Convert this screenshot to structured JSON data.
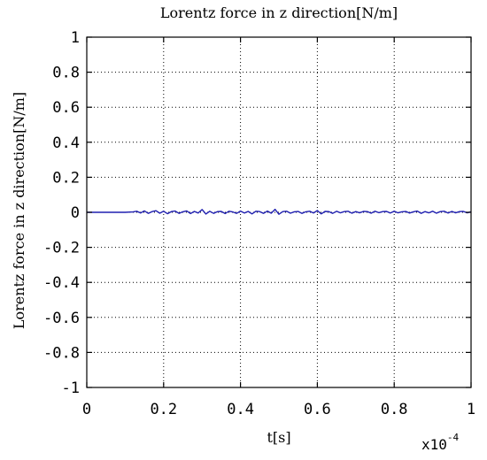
{
  "chart_data": {
    "type": "line",
    "title": "Lorentz force in z direction[N/m]",
    "xlabel": "t[s]",
    "ylabel": "Lorentz force in z direction[N/m]",
    "x_exponent_base": "x10",
    "x_exponent_power": "-4",
    "xlim": [
      0,
      1
    ],
    "ylim": [
      -1,
      1
    ],
    "x_ticks": [
      0,
      0.2,
      0.4,
      0.6,
      0.8,
      1
    ],
    "x_tick_labels": [
      "0",
      "0.2",
      "0.4",
      "0.6",
      "0.8",
      "1"
    ],
    "y_ticks": [
      -1,
      -0.8,
      -0.6,
      -0.4,
      -0.2,
      0,
      0.2,
      0.4,
      0.6,
      0.8,
      1
    ],
    "y_tick_labels": [
      "-1",
      "-0.8",
      "-0.6",
      "-0.4",
      "-0.2",
      "0",
      "0.2",
      "0.4",
      "0.6",
      "0.8",
      "1"
    ],
    "grid": true,
    "series": [
      {
        "color": "#1f1fb0",
        "x": [
          0,
          0.05,
          0.1,
          0.12,
          0.13,
          0.14,
          0.15,
          0.16,
          0.17,
          0.18,
          0.19,
          0.2,
          0.21,
          0.22,
          0.23,
          0.24,
          0.25,
          0.26,
          0.27,
          0.28,
          0.29,
          0.3,
          0.31,
          0.32,
          0.33,
          0.34,
          0.35,
          0.36,
          0.37,
          0.38,
          0.39,
          0.4,
          0.41,
          0.42,
          0.43,
          0.44,
          0.45,
          0.46,
          0.47,
          0.48,
          0.49,
          0.5,
          0.51,
          0.52,
          0.53,
          0.54,
          0.55,
          0.56,
          0.57,
          0.58,
          0.59,
          0.6,
          0.61,
          0.62,
          0.63,
          0.64,
          0.65,
          0.66,
          0.67,
          0.68,
          0.69,
          0.7,
          0.71,
          0.72,
          0.73,
          0.74,
          0.75,
          0.76,
          0.77,
          0.78,
          0.79,
          0.8,
          0.81,
          0.82,
          0.83,
          0.84,
          0.85,
          0.86,
          0.87,
          0.88,
          0.89,
          0.9,
          0.91,
          0.92,
          0.93,
          0.94,
          0.95,
          0.96,
          0.97,
          0.98,
          0.99,
          1
        ],
        "y": [
          0,
          0,
          0,
          0.002,
          0.006,
          -0.004,
          0.008,
          -0.006,
          0.004,
          0.009,
          -0.005,
          0.006,
          -0.008,
          0.004,
          0.007,
          -0.006,
          0.003,
          0.008,
          -0.007,
          0.005,
          -0.004,
          0.016,
          -0.01,
          0.006,
          -0.006,
          0.004,
          0.005,
          -0.007,
          0.006,
          0.002,
          -0.006,
          0.007,
          -0.004,
          0.005,
          -0.009,
          0.006,
          0.004,
          -0.006,
          0.007,
          -0.005,
          0.017,
          -0.011,
          0.004,
          0.006,
          -0.005,
          0.003,
          0.005,
          -0.006,
          0.003,
          0.006,
          -0.004,
          0.01,
          -0.009,
          0.005,
          0.004,
          -0.006,
          0.006,
          -0.003,
          0.004,
          0.006,
          -0.005,
          0.004,
          -0.003,
          0.005,
          0.004,
          -0.005,
          0.006,
          -0.002,
          0.004,
          0.005,
          -0.004,
          0.006,
          -0.003,
          0.003,
          0.005,
          -0.004,
          0.003,
          0.007,
          -0.006,
          0.004,
          -0.003,
          0.006,
          -0.005,
          0.004,
          0.006,
          -0.004,
          0.005,
          -0.003,
          0.004,
          0.005,
          -0.003,
          0.003
        ]
      }
    ]
  }
}
